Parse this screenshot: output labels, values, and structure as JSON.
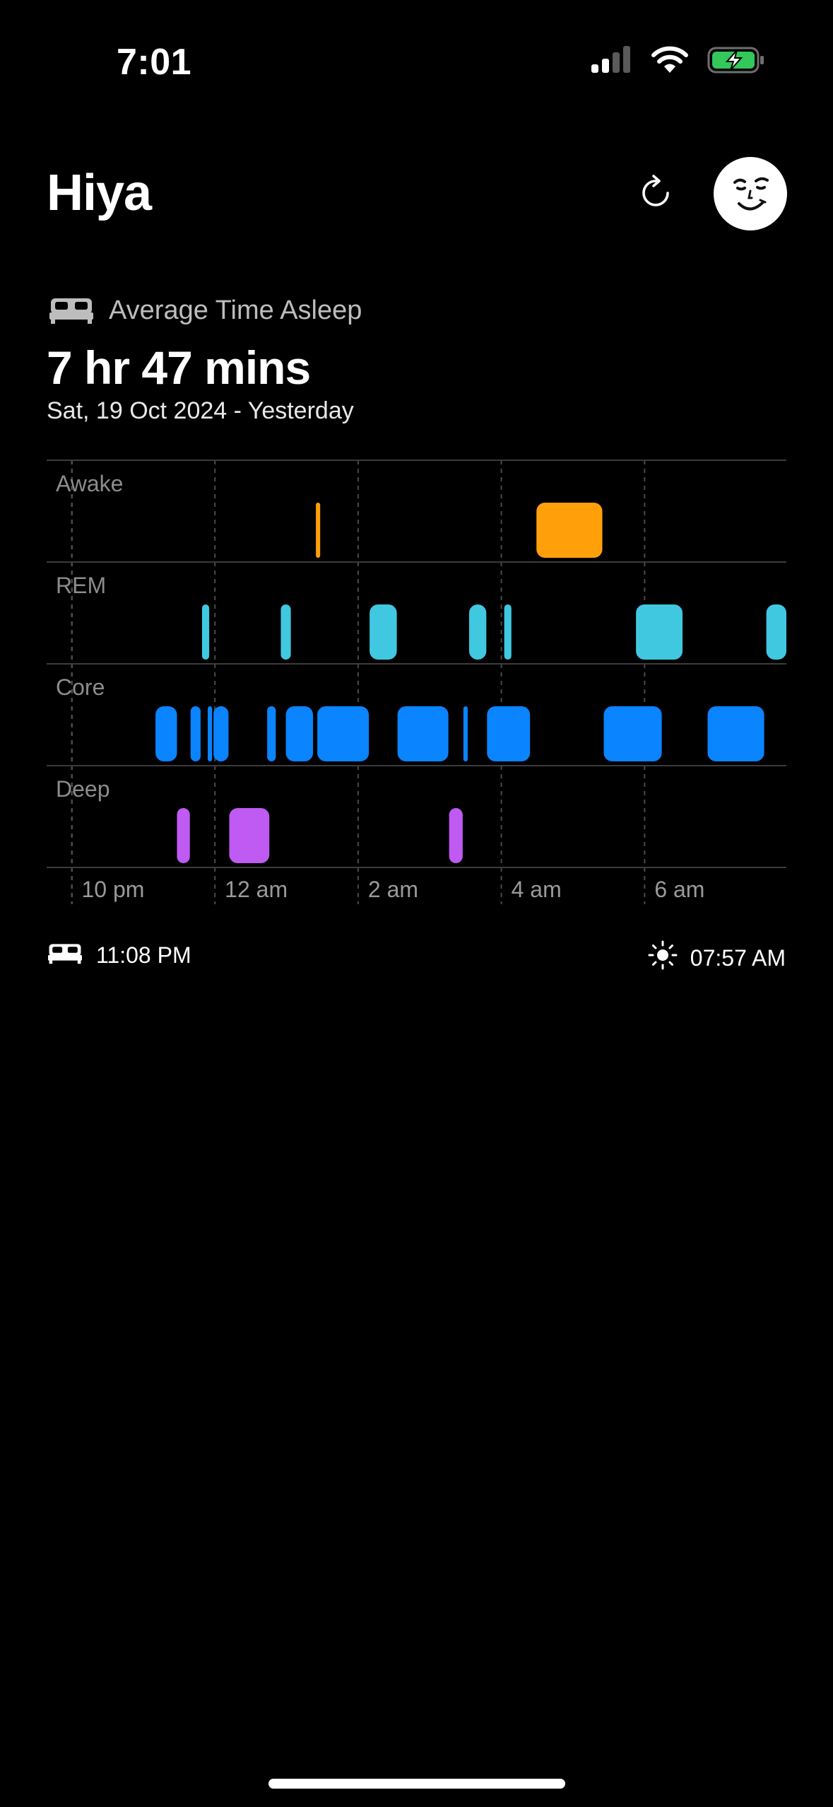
{
  "status_bar": {
    "time": "7:01"
  },
  "header": {
    "title": "Hiya",
    "refresh_icon": "refresh-icon",
    "avatar_icon": "smiley-face-icon"
  },
  "summary": {
    "label": "Average Time Asleep",
    "label_icon": "bed-icon",
    "value": "7 hr 47 mins",
    "date": "Sat, 19 Oct 2024 - Yesterday"
  },
  "chart_data": {
    "type": "sleep-stages-timeline",
    "stages": [
      "Awake",
      "REM",
      "Core",
      "Deep"
    ],
    "x_ticks": [
      {
        "label": "10 pm",
        "hours": 22
      },
      {
        "label": "12 am",
        "hours": 24
      },
      {
        "label": "2 am",
        "hours": 26
      },
      {
        "label": "4 am",
        "hours": 28
      },
      {
        "label": "6 am",
        "hours": 30
      }
    ],
    "xlim": [
      21.65,
      31.98
    ],
    "colors": {
      "Awake": "#FF9F0A",
      "REM": "#40C8E0",
      "Core": "#0A84FF",
      "Deep": "#BF5AF2"
    },
    "segments": [
      {
        "stage": "Awake",
        "start": 25.41,
        "end": 25.47
      },
      {
        "stage": "Awake",
        "start": 28.49,
        "end": 29.41
      },
      {
        "stage": "REM",
        "start": 23.82,
        "end": 23.92
      },
      {
        "stage": "REM",
        "start": 24.92,
        "end": 25.06
      },
      {
        "stage": "REM",
        "start": 26.16,
        "end": 26.54
      },
      {
        "stage": "REM",
        "start": 27.55,
        "end": 27.79
      },
      {
        "stage": "REM",
        "start": 28.04,
        "end": 28.14
      },
      {
        "stage": "REM",
        "start": 29.88,
        "end": 30.53
      },
      {
        "stage": "REM",
        "start": 31.7,
        "end": 31.98
      },
      {
        "stage": "Core",
        "start": 23.17,
        "end": 23.47
      },
      {
        "stage": "Core",
        "start": 23.66,
        "end": 23.8
      },
      {
        "stage": "Core",
        "start": 23.9,
        "end": 23.96
      },
      {
        "stage": "Core",
        "start": 23.98,
        "end": 24.19
      },
      {
        "stage": "Core",
        "start": 24.73,
        "end": 24.85
      },
      {
        "stage": "Core",
        "start": 24.99,
        "end": 25.37
      },
      {
        "stage": "Core",
        "start": 25.43,
        "end": 26.15
      },
      {
        "stage": "Core",
        "start": 26.55,
        "end": 27.26
      },
      {
        "stage": "Core",
        "start": 27.47,
        "end": 27.53
      },
      {
        "stage": "Core",
        "start": 27.8,
        "end": 28.4
      },
      {
        "stage": "Core",
        "start": 29.43,
        "end": 30.24
      },
      {
        "stage": "Core",
        "start": 30.88,
        "end": 31.67
      },
      {
        "stage": "Deep",
        "start": 23.47,
        "end": 23.65
      },
      {
        "stage": "Deep",
        "start": 24.2,
        "end": 24.76
      },
      {
        "stage": "Deep",
        "start": 27.27,
        "end": 27.46
      }
    ]
  },
  "footer": {
    "bedtime": "11:08 PM",
    "bedtime_icon": "bed-icon",
    "waketime": "07:57 AM",
    "waketime_icon": "sun-icon"
  }
}
